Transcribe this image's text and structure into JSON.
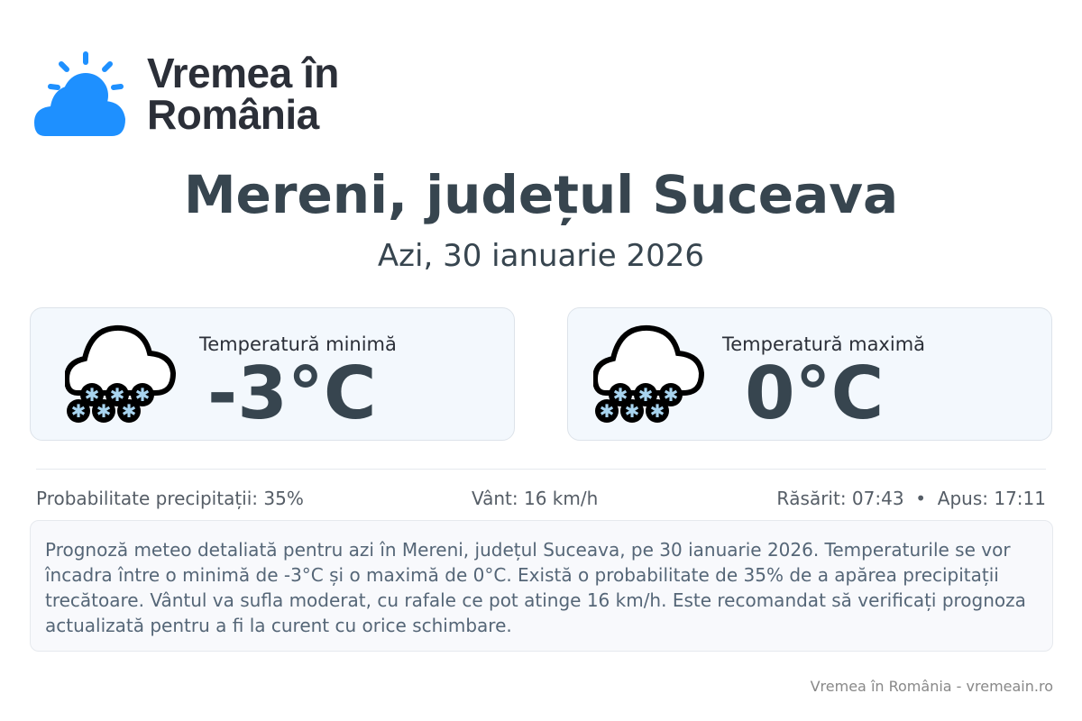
{
  "logo": {
    "line1": "Vremea în",
    "line2": "România",
    "icon": "sun-behind-cloud-icon",
    "color": "#1e90ff"
  },
  "title": "Mereni, județul Suceava",
  "subtitle": "Azi, 30 ianuarie 2026",
  "cards": [
    {
      "label": "Temperatură minimă",
      "value": "-3°C",
      "icon": "snow-cloud-icon"
    },
    {
      "label": "Temperatură maximă",
      "value": "0°C",
      "icon": "snow-cloud-icon"
    }
  ],
  "stats": {
    "precip": "Probabilitate precipitații: 35%",
    "wind": "Vânt: 16 km/h",
    "sun": "Răsărit: 07:43  •  Apus: 17:11"
  },
  "description": "Prognoză meteo detaliată pentru azi în Mereni, județul Suceava, pe 30 ianuarie 2026. Temperaturile se vor încadra între o minimă de -3°C și o maximă de 0°C. Există o probabilitate de 35% de a apărea precipitații trecătoare. Vântul va sufla moderat, cu rafale ce pot atinge 16 km/h. Este recomandat să verificați prognoza actualizată pentru a fi la curent cu orice schimbare.",
  "footer": "Vremea în România - vremeain.ro"
}
